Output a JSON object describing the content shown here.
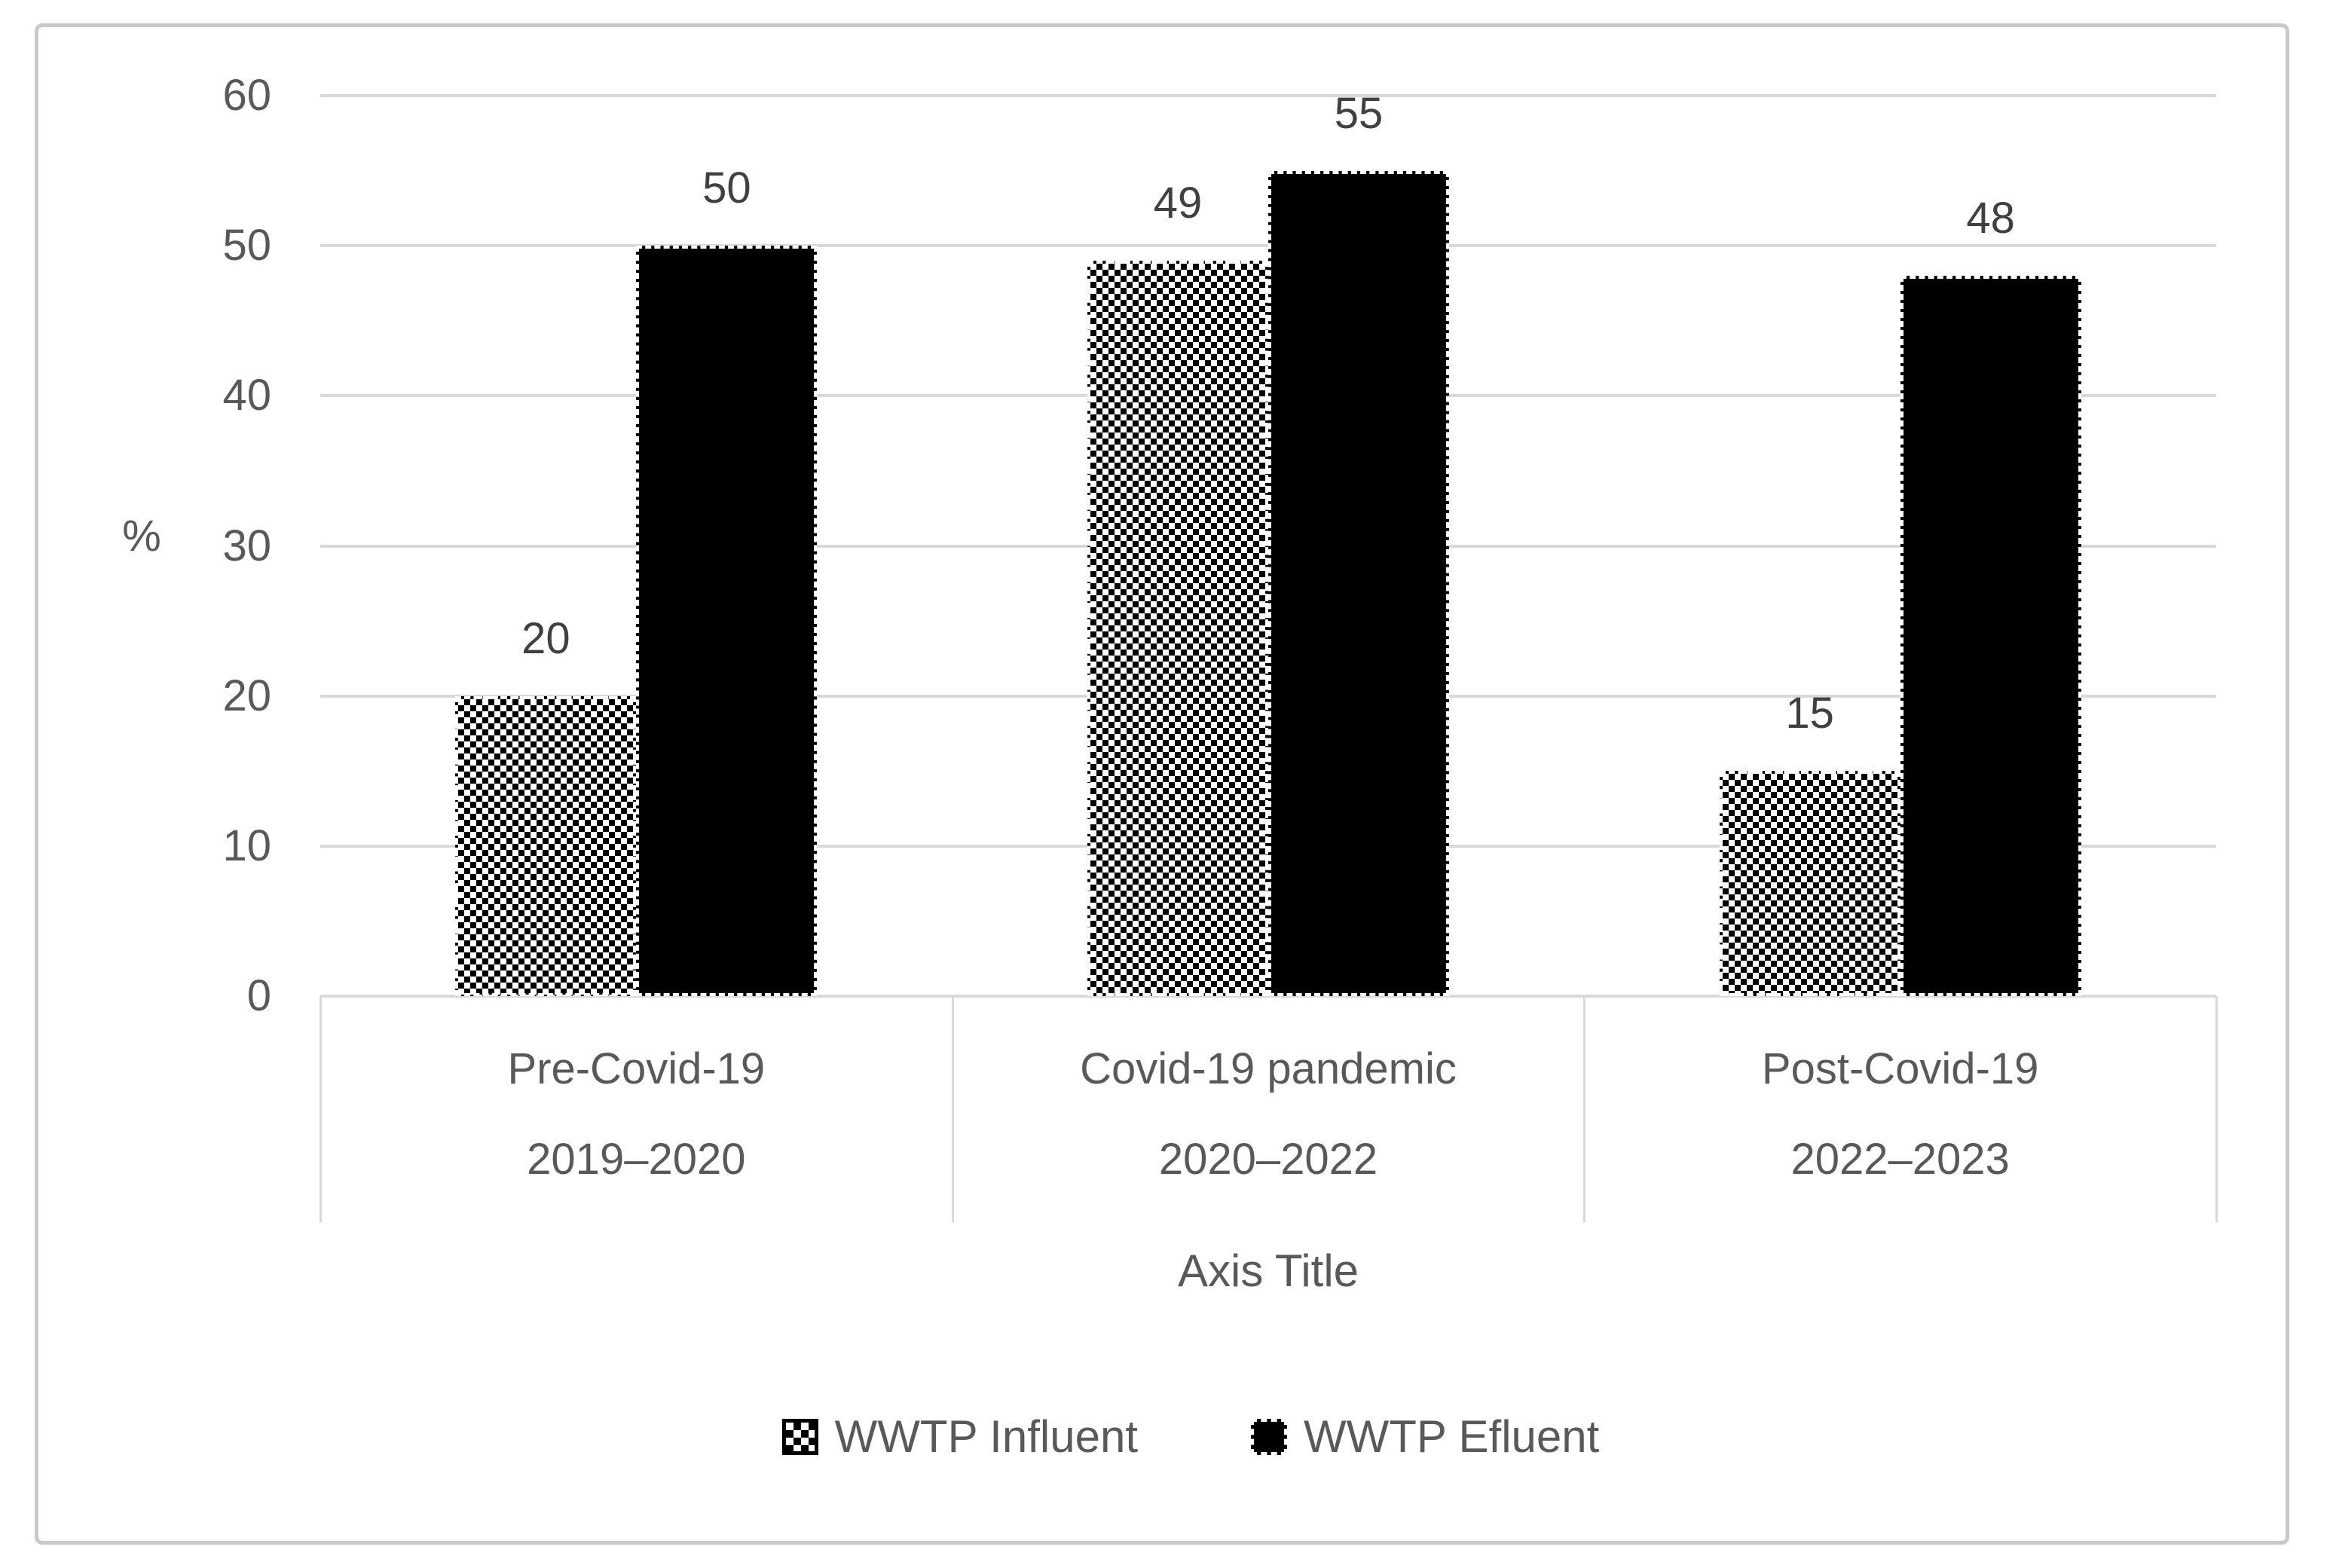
{
  "figure": {
    "background": "#ffffff",
    "border_color": "#c9c9c9"
  },
  "chart_data": {
    "type": "bar",
    "title": "",
    "xlabel": "Axis Title",
    "ylabel": "%",
    "ylim": [
      0,
      60
    ],
    "yticks": [
      0,
      10,
      20,
      30,
      40,
      50,
      60
    ],
    "grid": true,
    "data_labels_shown": true,
    "legend_position": "bottom",
    "categories": [
      {
        "label": "Pre-Covid-19",
        "sublabel": "2019–2020"
      },
      {
        "label": "Covid-19 pandemic",
        "sublabel": "2020–2022"
      },
      {
        "label": "Post-Covid-19",
        "sublabel": "2022–2023"
      }
    ],
    "series": [
      {
        "name": "WWTP Influent",
        "fill": "checker-pattern",
        "values": [
          20,
          49,
          15
        ]
      },
      {
        "name": "WWTP Efluent",
        "fill": "solid-black",
        "values": [
          50,
          55,
          48
        ]
      }
    ],
    "colors": {
      "bar_fill": "#000000",
      "gridline": "#d9d9d9",
      "axis_text": "#595959",
      "data_label_text": "#404040"
    }
  }
}
